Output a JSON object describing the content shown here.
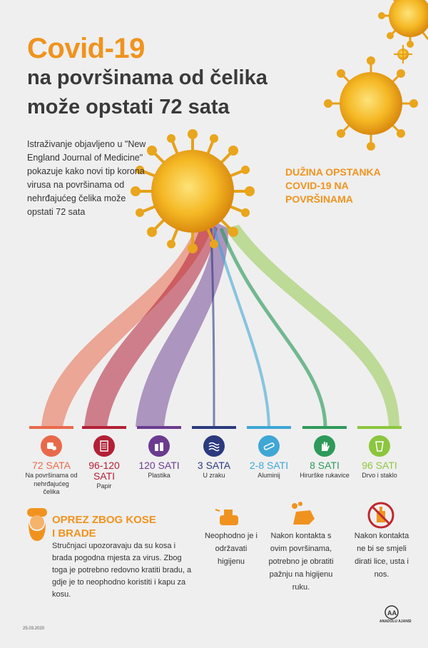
{
  "header": {
    "title": "Covid-19",
    "line2": "na površinama od čelika",
    "line3": "može opstati 72 sata"
  },
  "intro": "Istraživanje objavljeno u \"New England Journal of Medicine\" pokazuje kako novi tip korona virusa na površinama od nehrđajućeg čelika može opstati 72 sata",
  "duration_label_1": "DUŽINA OPSTANKA",
  "duration_label_2": "COVID-19 NA",
  "duration_label_3": "POVRŠINAMA",
  "surfaces": [
    {
      "value": "72 SATA",
      "desc1": "Na površinama od",
      "desc2": "nehrđajućeg čelika",
      "color": "#e8694a",
      "icon": "steel-icon"
    },
    {
      "value": "96-120",
      "value2": "SATI",
      "desc1": "Papir",
      "color": "#b32036",
      "icon": "paper-icon"
    },
    {
      "value": "120 SATI",
      "desc1": "Plastika",
      "color": "#6a3b8f",
      "icon": "plastic-icon"
    },
    {
      "value": "3 SATA",
      "desc1": "U zraku",
      "color": "#2b3a7e",
      "icon": "air-icon"
    },
    {
      "value": "2-8 SATI",
      "desc1": "Aluminij",
      "color": "#3fa6d6",
      "icon": "aluminium-icon"
    },
    {
      "value": "8 SATI",
      "desc1": "Hirurške rukavice",
      "color": "#2e9a5a",
      "icon": "gloves-icon"
    },
    {
      "value": "96 SATI",
      "desc1": "Drvo i staklo",
      "color": "#8cc63e",
      "icon": "wood-glass-icon"
    }
  ],
  "beard": {
    "title1": "OPREZ ZBOG KOSE",
    "title2": "I BRADE",
    "text": "Stručnjaci upozoravaju da su kosa i brada pogodna mjesta za virus. Zbog toga je potrebno redovno kratiti bradu, a gdje je to neophodno koristiti i kapu za kosu."
  },
  "tips": [
    {
      "text": "Neophodno je i održavati higijenu",
      "icon": "spray-icon"
    },
    {
      "text": "Nakon kontakta s ovim površinama, potrebno je obratiti pažnju na higijenu ruku.",
      "icon": "handwash-icon"
    },
    {
      "text": "Nakon kontakta ne bi se smjeli dirati lice, usta i nos.",
      "icon": "no-touch-icon"
    }
  ],
  "footer": {
    "date": "25.03.2020",
    "agency": "ANADOLU AJANSI"
  },
  "colors": {
    "accent": "#f0931e",
    "text": "#3a3a3a",
    "virus": "#f3b320"
  }
}
